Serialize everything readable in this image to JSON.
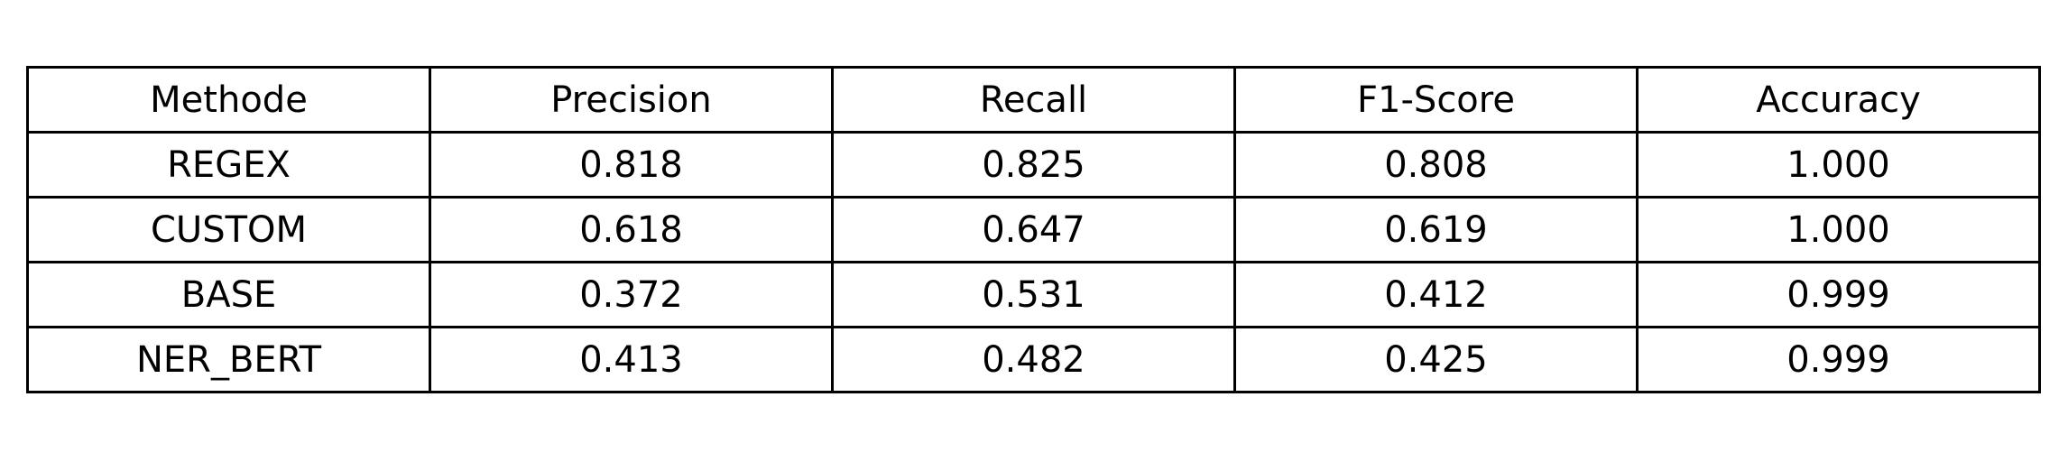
{
  "chart_data": {
    "type": "table",
    "columns": [
      "Methode",
      "Precision",
      "Recall",
      "F1-Score",
      "Accuracy"
    ],
    "rows": [
      [
        "REGEX",
        "0.818",
        "0.825",
        "0.808",
        "1.000"
      ],
      [
        "CUSTOM",
        "0.618",
        "0.647",
        "0.619",
        "1.000"
      ],
      [
        "BASE",
        "0.372",
        "0.531",
        "0.412",
        "0.999"
      ],
      [
        "NER_BERT",
        "0.413",
        "0.482",
        "0.425",
        "0.999"
      ]
    ]
  }
}
